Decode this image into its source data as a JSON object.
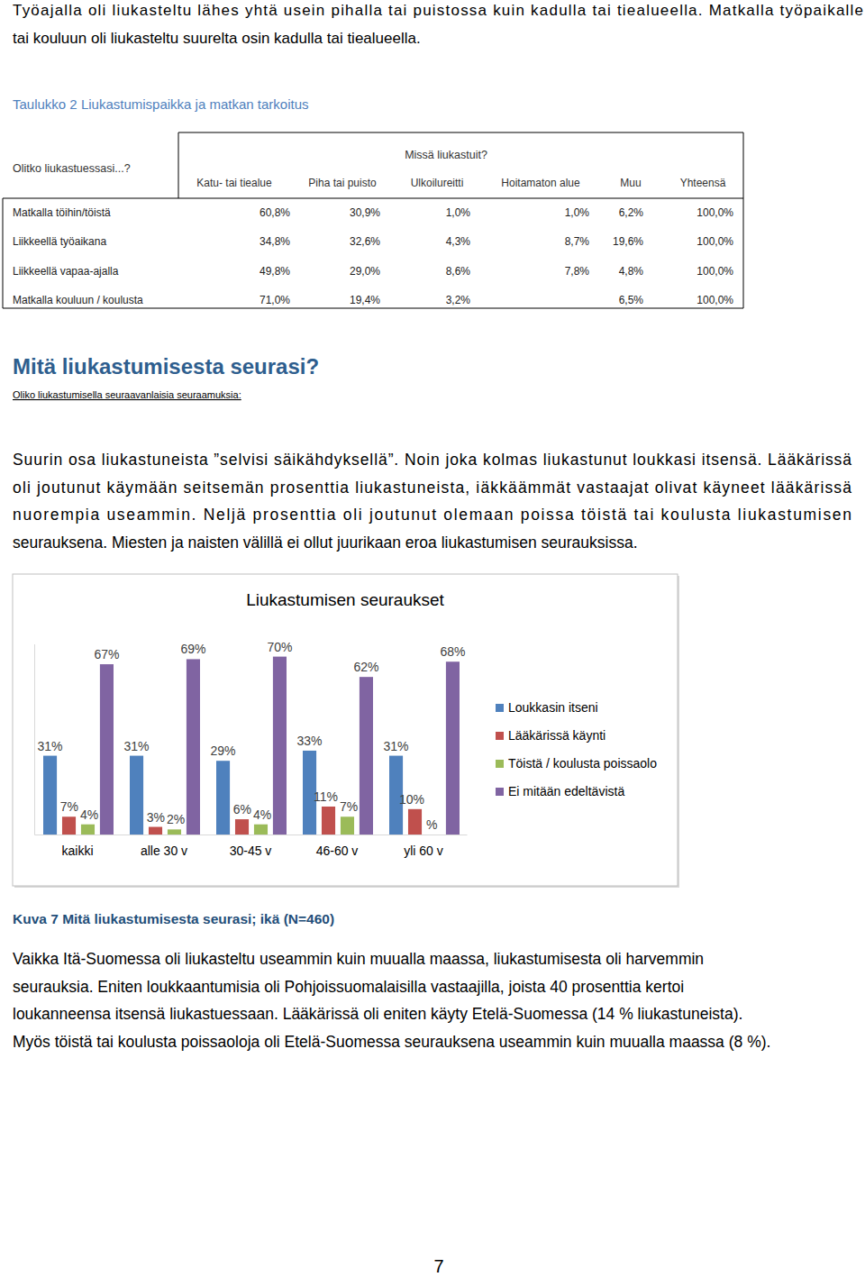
{
  "intro": [
    "Työajalla oli liukasteltu lähes yhtä usein pihalla tai puistossa kuin kadulla tai tiealueella. Matkalla työpaikalle",
    "tai kouluun oli liukasteltu suurelta osin kadulla tai tiealueella."
  ],
  "table_caption": "Taulukko 2 Liukastumispaikka ja matkan tarkoitus",
  "table": {
    "row_header": "Olitko liukastuessasi...?",
    "column_group": "Missä liukastuit?",
    "columns": [
      "Katu- tai tiealue",
      "Piha tai puisto",
      "Ulkoilureitti",
      "Hoitamaton alue",
      "Muu",
      "Yhteensä"
    ],
    "rows": [
      {
        "label": "Matkalla töihin/töistä",
        "values": [
          "60,8%",
          "30,9%",
          "1,0%",
          "1,0%",
          "6,2%",
          "100,0%"
        ]
      },
      {
        "label": "Liikkeellä työaikana",
        "values": [
          "34,8%",
          "32,6%",
          "4,3%",
          "8,7%",
          "19,6%",
          "100,0%"
        ]
      },
      {
        "label": "Liikkeellä vapaa-ajalla",
        "values": [
          "49,8%",
          "29,0%",
          "8,6%",
          "7,8%",
          "4,8%",
          "100,0%"
        ]
      },
      {
        "label": "Matkalla kouluun / koulusta",
        "values": [
          "71,0%",
          "19,4%",
          "3,2%",
          null,
          "6,5%",
          "100,0%"
        ]
      }
    ]
  },
  "heading": "Mitä liukastumisesta seurasi?",
  "subheading": "Oliko liukastumisella seuraavanlaisia seuraamuksia:",
  "body": [
    "Suurin osa liukastuneista ”selvisi säikähdyksellä”. Noin joka kolmas liukastunut loukkasi itsensä. Lääkärissä",
    "oli joutunut käymään seitsemän prosenttia liukastuneista, iäkkäämmät vastaajat olivat käyneet lääkärissä",
    "nuorempia useammin. Neljä prosenttia oli joutunut olemaan poissa töistä tai koulusta liukastumisen",
    "seurauksena. Miesten ja naisten välillä ei ollut juurikaan eroa liukastumisen seurauksissa."
  ],
  "chart_data": {
    "type": "bar",
    "title": "Liukastumisen seuraukset",
    "categories": [
      "kaikki",
      "alle 30 v",
      "30-45 v",
      "46-60 v",
      "yli 60 v"
    ],
    "series": [
      {
        "name": "Loukkasin itseni",
        "color": "#4f81bd",
        "values": [
          31,
          31,
          29,
          33,
          31
        ],
        "value_labels": [
          "31%",
          "31%",
          "29%",
          "33%",
          "31%"
        ]
      },
      {
        "name": "Lääkärissä käynti",
        "color": "#c0504d",
        "values": [
          7,
          3,
          6,
          11,
          10
        ],
        "value_labels": [
          "7%",
          "3%",
          "6%",
          "11%",
          "10%"
        ]
      },
      {
        "name": "Töistä / koulusta poissaolo",
        "color": "#9bbb59",
        "values": [
          4,
          2,
          4,
          7,
          null
        ],
        "value_labels": [
          "4%",
          "2%",
          "4%",
          "7%",
          "%"
        ]
      },
      {
        "name": "Ei mitään edeltävistä",
        "color": "#8064a2",
        "values": [
          67,
          69,
          70,
          62,
          68
        ],
        "value_labels": [
          "67%",
          "69%",
          "70%",
          "62%",
          "68%"
        ]
      }
    ],
    "ylim": [
      0,
      75
    ],
    "tick_labels": "x",
    "data_labels": true,
    "legend": "right"
  },
  "figure_caption": "Kuva 7 Mitä liukastumisesta seurasi; ikä (N=460)",
  "body2": [
    "Vaikka Itä-Suomessa oli liukasteltu useammin kuin muualla maassa, liukastumisesta oli harvemmin",
    "seurauksia. Eniten loukkaantumisia oli Pohjoissuomalaisilla vastaajilla, joista 40 prosenttia kertoi",
    "loukanneensa itsensä liukastuessaan. Lääkärissä oli eniten käyty Etelä-Suomessa (14 % liukastuneista).",
    "Myös töistä tai koulusta poissaoloja oli Etelä-Suomessa seurauksena useammin kuin muualla maassa (8 %)."
  ],
  "page_number": "7"
}
